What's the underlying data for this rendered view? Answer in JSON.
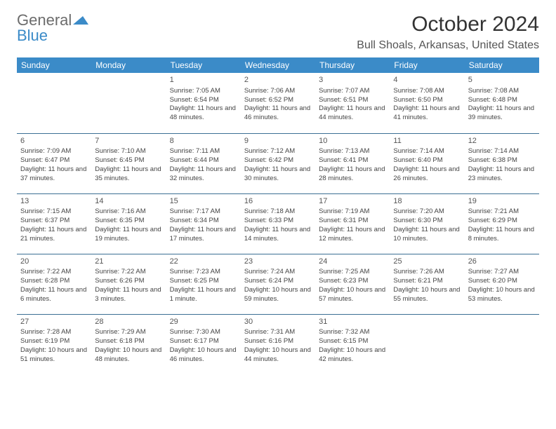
{
  "brand": {
    "line1": "General",
    "line2": "Blue",
    "logo_color": "#3b8bc8"
  },
  "title": "October 2024",
  "location": "Bull Shoals, Arkansas, United States",
  "colors": {
    "header_bg": "#3b8bc8",
    "header_text": "#ffffff",
    "row_border": "#3b6f94",
    "body_text": "#444444",
    "page_bg": "#ffffff"
  },
  "weekdays": [
    "Sunday",
    "Monday",
    "Tuesday",
    "Wednesday",
    "Thursday",
    "Friday",
    "Saturday"
  ],
  "weeks": [
    [
      null,
      null,
      {
        "n": "1",
        "sr": "7:05 AM",
        "ss": "6:54 PM",
        "dl": "11 hours and 48 minutes."
      },
      {
        "n": "2",
        "sr": "7:06 AM",
        "ss": "6:52 PM",
        "dl": "11 hours and 46 minutes."
      },
      {
        "n": "3",
        "sr": "7:07 AM",
        "ss": "6:51 PM",
        "dl": "11 hours and 44 minutes."
      },
      {
        "n": "4",
        "sr": "7:08 AM",
        "ss": "6:50 PM",
        "dl": "11 hours and 41 minutes."
      },
      {
        "n": "5",
        "sr": "7:08 AM",
        "ss": "6:48 PM",
        "dl": "11 hours and 39 minutes."
      }
    ],
    [
      {
        "n": "6",
        "sr": "7:09 AM",
        "ss": "6:47 PM",
        "dl": "11 hours and 37 minutes."
      },
      {
        "n": "7",
        "sr": "7:10 AM",
        "ss": "6:45 PM",
        "dl": "11 hours and 35 minutes."
      },
      {
        "n": "8",
        "sr": "7:11 AM",
        "ss": "6:44 PM",
        "dl": "11 hours and 32 minutes."
      },
      {
        "n": "9",
        "sr": "7:12 AM",
        "ss": "6:42 PM",
        "dl": "11 hours and 30 minutes."
      },
      {
        "n": "10",
        "sr": "7:13 AM",
        "ss": "6:41 PM",
        "dl": "11 hours and 28 minutes."
      },
      {
        "n": "11",
        "sr": "7:14 AM",
        "ss": "6:40 PM",
        "dl": "11 hours and 26 minutes."
      },
      {
        "n": "12",
        "sr": "7:14 AM",
        "ss": "6:38 PM",
        "dl": "11 hours and 23 minutes."
      }
    ],
    [
      {
        "n": "13",
        "sr": "7:15 AM",
        "ss": "6:37 PM",
        "dl": "11 hours and 21 minutes."
      },
      {
        "n": "14",
        "sr": "7:16 AM",
        "ss": "6:35 PM",
        "dl": "11 hours and 19 minutes."
      },
      {
        "n": "15",
        "sr": "7:17 AM",
        "ss": "6:34 PM",
        "dl": "11 hours and 17 minutes."
      },
      {
        "n": "16",
        "sr": "7:18 AM",
        "ss": "6:33 PM",
        "dl": "11 hours and 14 minutes."
      },
      {
        "n": "17",
        "sr": "7:19 AM",
        "ss": "6:31 PM",
        "dl": "11 hours and 12 minutes."
      },
      {
        "n": "18",
        "sr": "7:20 AM",
        "ss": "6:30 PM",
        "dl": "11 hours and 10 minutes."
      },
      {
        "n": "19",
        "sr": "7:21 AM",
        "ss": "6:29 PM",
        "dl": "11 hours and 8 minutes."
      }
    ],
    [
      {
        "n": "20",
        "sr": "7:22 AM",
        "ss": "6:28 PM",
        "dl": "11 hours and 6 minutes."
      },
      {
        "n": "21",
        "sr": "7:22 AM",
        "ss": "6:26 PM",
        "dl": "11 hours and 3 minutes."
      },
      {
        "n": "22",
        "sr": "7:23 AM",
        "ss": "6:25 PM",
        "dl": "11 hours and 1 minute."
      },
      {
        "n": "23",
        "sr": "7:24 AM",
        "ss": "6:24 PM",
        "dl": "10 hours and 59 minutes."
      },
      {
        "n": "24",
        "sr": "7:25 AM",
        "ss": "6:23 PM",
        "dl": "10 hours and 57 minutes."
      },
      {
        "n": "25",
        "sr": "7:26 AM",
        "ss": "6:21 PM",
        "dl": "10 hours and 55 minutes."
      },
      {
        "n": "26",
        "sr": "7:27 AM",
        "ss": "6:20 PM",
        "dl": "10 hours and 53 minutes."
      }
    ],
    [
      {
        "n": "27",
        "sr": "7:28 AM",
        "ss": "6:19 PM",
        "dl": "10 hours and 51 minutes."
      },
      {
        "n": "28",
        "sr": "7:29 AM",
        "ss": "6:18 PM",
        "dl": "10 hours and 48 minutes."
      },
      {
        "n": "29",
        "sr": "7:30 AM",
        "ss": "6:17 PM",
        "dl": "10 hours and 46 minutes."
      },
      {
        "n": "30",
        "sr": "7:31 AM",
        "ss": "6:16 PM",
        "dl": "10 hours and 44 minutes."
      },
      {
        "n": "31",
        "sr": "7:32 AM",
        "ss": "6:15 PM",
        "dl": "10 hours and 42 minutes."
      },
      null,
      null
    ]
  ],
  "labels": {
    "sunrise": "Sunrise:",
    "sunset": "Sunset:",
    "daylight": "Daylight:"
  }
}
